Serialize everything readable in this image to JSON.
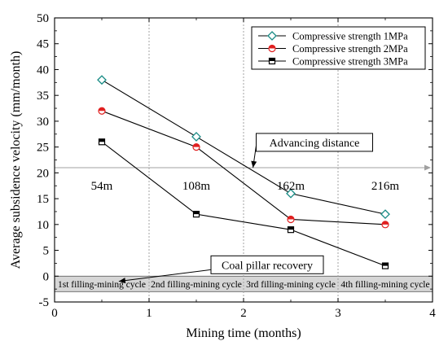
{
  "chart_data": {
    "type": "line",
    "title": "",
    "xlabel": "Mining time (months)",
    "ylabel": "Average subsidence velocity (mm/month)",
    "xlim": [
      0,
      4
    ],
    "ylim": [
      -5,
      50
    ],
    "xticks": [
      0,
      1,
      2,
      3,
      4
    ],
    "yticks": [
      -5,
      0,
      5,
      10,
      15,
      20,
      25,
      30,
      35,
      40,
      45,
      50
    ],
    "grid": false,
    "legend_position": "top-right",
    "vertical_dividers": [
      1,
      2,
      3
    ],
    "advancing_line_y": 21,
    "x": [
      0.5,
      1.5,
      2.5,
      3.5
    ],
    "series": [
      {
        "name": "Compressive strength 1MPa",
        "values": [
          38,
          27,
          16,
          12
        ],
        "color": "#1a8c86",
        "marker": "diamond"
      },
      {
        "name": "Compressive strength 2MPa",
        "values": [
          32,
          25,
          11,
          10
        ],
        "color": "#e02020",
        "marker": "circle"
      },
      {
        "name": "Compressive strength 3MPa",
        "values": [
          26,
          12,
          9,
          2
        ],
        "color": "#000000",
        "marker": "square"
      }
    ],
    "distance_labels": [
      {
        "x": 0.5,
        "text": "54m"
      },
      {
        "x": 1.5,
        "text": "108m"
      },
      {
        "x": 2.5,
        "text": "162m"
      },
      {
        "x": 3.5,
        "text": "216m"
      }
    ],
    "cycle_labels": [
      {
        "x": 0.5,
        "text": "1st filling-mining cycle"
      },
      {
        "x": 1.5,
        "text": "2nd filling-mining cycle"
      },
      {
        "x": 2.5,
        "text": "3rd filling-mining cycle"
      },
      {
        "x": 3.5,
        "text": "4th filling-mining cycle"
      }
    ],
    "band": {
      "y_from": -3,
      "y_to": 0,
      "color": "#d6d6d6"
    },
    "annotations": [
      {
        "text": "Advancing distance",
        "box_x": 2.75,
        "box_y": 25.9,
        "arrow_to_x": 2.1,
        "arrow_to_y": 21
      },
      {
        "text": "Coal pillar recovery",
        "box_x": 2.25,
        "box_y": 2.2,
        "arrow_to_x": 0.68,
        "arrow_to_y": -1
      }
    ]
  }
}
